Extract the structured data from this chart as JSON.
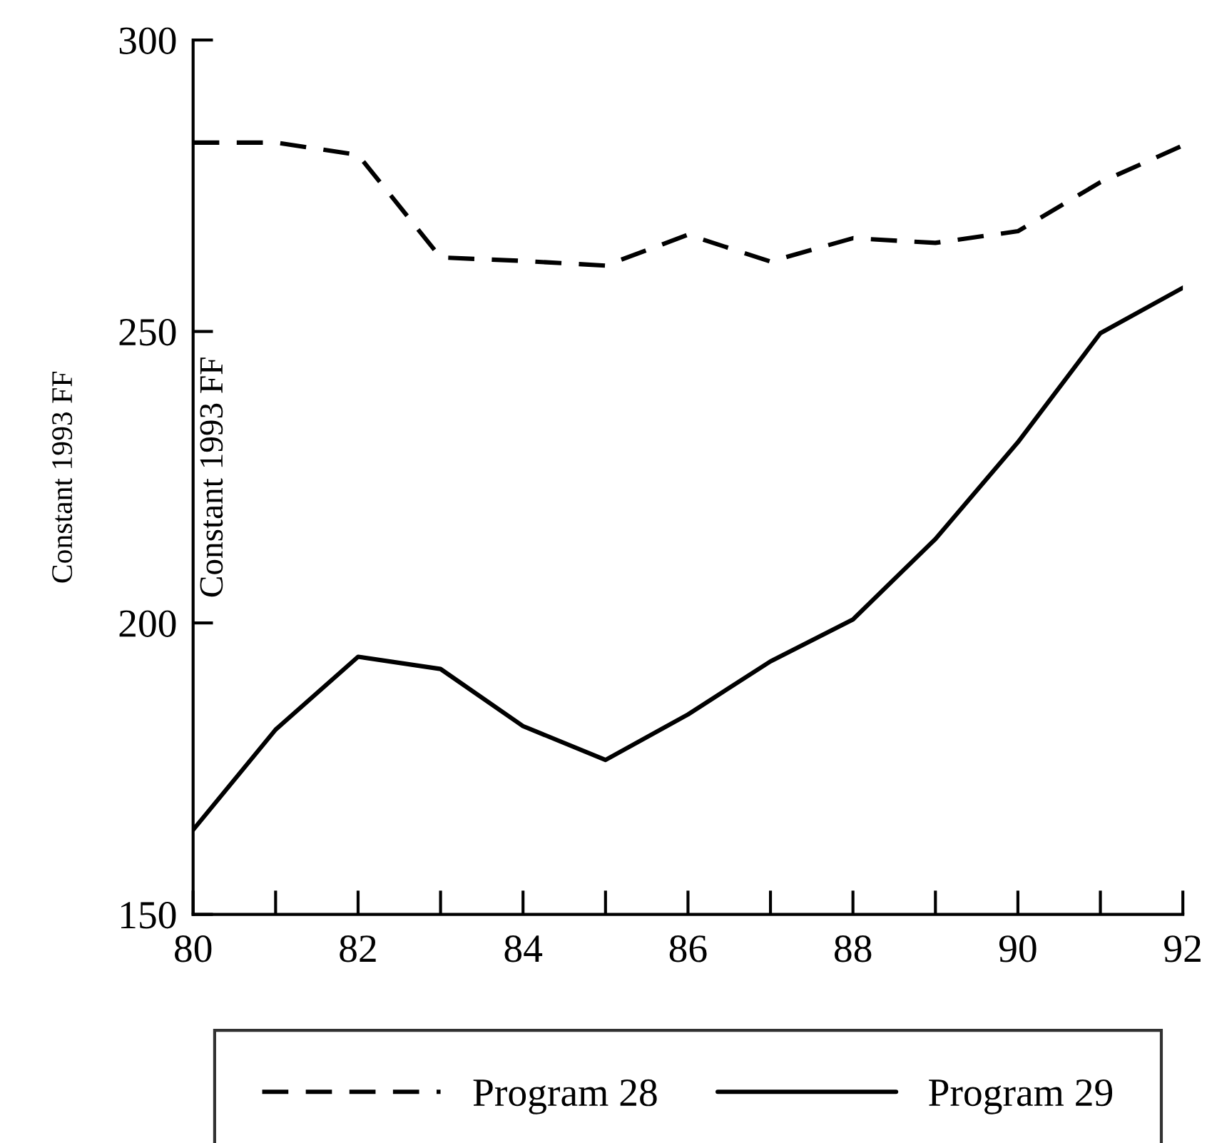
{
  "chart_data": {
    "type": "line",
    "ylabel": "Constant 1993 FF",
    "x": [
      80,
      81,
      82,
      83,
      84,
      85,
      86,
      87,
      88,
      89,
      90,
      91,
      92
    ],
    "series": [
      {
        "name": "Program 28",
        "color": "#000000",
        "line_style": "dashed",
        "values": [
          282.4,
          282.4,
          280.3,
          262.7,
          262.1,
          261.3,
          266.6,
          262.0,
          266.0,
          265.2,
          267.2,
          275.6,
          281.9
        ]
      },
      {
        "name": "Program 29",
        "color": "#000000",
        "line_style": "solid",
        "values": [
          164.5,
          181.7,
          194.2,
          192.1,
          182.3,
          176.5,
          184.3,
          193.4,
          200.6,
          214.4,
          231.0,
          249.7,
          257.5
        ]
      }
    ],
    "annotations": [
      {
        "text": "Constant 1993 FF"
      }
    ],
    "xlim": [
      80,
      92
    ],
    "xticks": [
      80,
      82,
      84,
      86,
      88,
      90,
      92
    ],
    "ylim": [
      150,
      300
    ],
    "yticks": [
      150,
      200,
      250,
      300
    ],
    "grid": false,
    "legend": "bottom"
  }
}
